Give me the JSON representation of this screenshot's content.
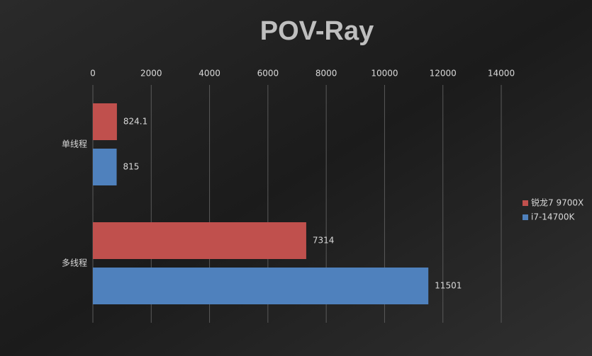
{
  "chart_data": {
    "type": "hbar",
    "title": "POV-Ray",
    "categories": [
      "单线程",
      "多线程"
    ],
    "series": [
      {
        "name": "锐龙7 9700X",
        "color": "#c0504d",
        "values": [
          824.1,
          7314
        ]
      },
      {
        "name": "i7-14700K",
        "color": "#4f81bd",
        "values": [
          815,
          11501
        ]
      }
    ],
    "xlim": [
      0,
      14000
    ],
    "xticks": [
      0,
      2000,
      4000,
      6000,
      8000,
      10000,
      12000,
      14000
    ],
    "grid": true,
    "legend": "right"
  }
}
